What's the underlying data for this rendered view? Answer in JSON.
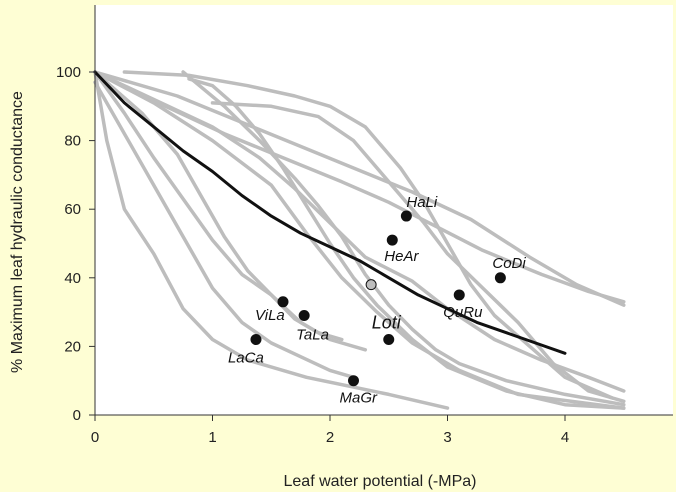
{
  "colors": {
    "background": "#fefed4",
    "plot_background": "#ffffff",
    "species_curve": "#bdbdbd",
    "mean_curve": "#111111",
    "point": "#111111",
    "highlight_point": "#bdbdbd",
    "axis": "#333333"
  },
  "chart_data": {
    "type": "line",
    "title": "",
    "xlabel": "Leaf water potential (-MPa)",
    "ylabel": "% Maximum leaf hydraulic conductance",
    "xlim": [
      0,
      4.5
    ],
    "ylim": [
      0,
      120
    ],
    "xticks": [
      0,
      1,
      2,
      3,
      4
    ],
    "yticks": [
      0,
      20,
      40,
      60,
      80,
      100
    ],
    "grid": false,
    "legend": "none",
    "species_curves": [
      [
        [
          0,
          100
        ],
        [
          0.1,
          80
        ],
        [
          0.25,
          60
        ],
        [
          0.5,
          47
        ],
        [
          0.75,
          31
        ],
        [
          1,
          22
        ],
        [
          1.3,
          16
        ],
        [
          1.8,
          11
        ],
        [
          2.5,
          6
        ],
        [
          3,
          2
        ]
      ],
      [
        [
          0,
          97
        ],
        [
          0.25,
          82
        ],
        [
          0.5,
          67
        ],
        [
          0.75,
          52
        ],
        [
          1,
          37
        ],
        [
          1.25,
          27
        ],
        [
          1.5,
          21
        ],
        [
          1.75,
          17
        ],
        [
          2,
          13
        ],
        [
          2.2,
          11
        ]
      ],
      [
        [
          0,
          100
        ],
        [
          0.25,
          88
        ],
        [
          0.5,
          75
        ],
        [
          0.75,
          63
        ],
        [
          1,
          51
        ],
        [
          1.25,
          41
        ],
        [
          1.5,
          35
        ],
        [
          1.75,
          27
        ],
        [
          2,
          22
        ],
        [
          2.3,
          19
        ]
      ],
      [
        [
          0,
          100
        ],
        [
          0.4,
          88
        ],
        [
          0.7,
          76
        ],
        [
          0.9,
          64
        ],
        [
          1.1,
          52
        ],
        [
          1.3,
          42
        ],
        [
          1.5,
          35
        ],
        [
          1.7,
          28
        ],
        [
          1.9,
          24
        ],
        [
          2.1,
          22
        ]
      ],
      [
        [
          0,
          100
        ],
        [
          0.5,
          91
        ],
        [
          1,
          80
        ],
        [
          1.5,
          67
        ],
        [
          1.8,
          53
        ],
        [
          2.1,
          40
        ],
        [
          2.4,
          30
        ],
        [
          2.7,
          21
        ],
        [
          3.1,
          13
        ],
        [
          3.6,
          6
        ],
        [
          4.5,
          2
        ]
      ],
      [
        [
          0,
          100
        ],
        [
          0.5,
          92
        ],
        [
          1,
          84
        ],
        [
          1.4,
          75
        ],
        [
          1.7,
          66
        ],
        [
          2,
          56
        ],
        [
          2.3,
          46
        ],
        [
          2.7,
          39
        ],
        [
          3,
          31
        ],
        [
          3.4,
          22
        ],
        [
          3.8,
          16
        ],
        [
          4.2,
          11
        ],
        [
          4.5,
          7
        ]
      ],
      [
        [
          0.25,
          100
        ],
        [
          0.8,
          99
        ],
        [
          1.3,
          96
        ],
        [
          1.7,
          93
        ],
        [
          2,
          90
        ],
        [
          2.3,
          84
        ],
        [
          2.6,
          72
        ],
        [
          2.8,
          62
        ],
        [
          3,
          50
        ],
        [
          3.2,
          38
        ],
        [
          3.4,
          29
        ],
        [
          3.7,
          20
        ],
        [
          4,
          11
        ],
        [
          4.4,
          5
        ]
      ],
      [
        [
          1,
          91
        ],
        [
          1.5,
          90
        ],
        [
          1.9,
          87
        ],
        [
          2.2,
          80
        ],
        [
          2.5,
          68
        ],
        [
          2.8,
          56
        ],
        [
          3,
          47
        ],
        [
          3.3,
          37
        ],
        [
          3.6,
          27
        ],
        [
          3.9,
          15
        ],
        [
          4.2,
          7
        ],
        [
          4.5,
          4
        ]
      ],
      [
        [
          0,
          100
        ],
        [
          0.7,
          93
        ],
        [
          1.2,
          86
        ],
        [
          1.7,
          79
        ],
        [
          2.2,
          72
        ],
        [
          2.7,
          65
        ],
        [
          3.2,
          57
        ],
        [
          3.7,
          46
        ],
        [
          4.1,
          38
        ],
        [
          4.5,
          32
        ]
      ],
      [
        [
          0,
          100
        ],
        [
          0.6,
          90
        ],
        [
          1.1,
          82
        ],
        [
          1.6,
          75
        ],
        [
          2.1,
          68
        ],
        [
          2.5,
          62
        ],
        [
          2.9,
          55
        ],
        [
          3.3,
          48
        ],
        [
          3.8,
          41
        ],
        [
          4.2,
          36
        ],
        [
          4.5,
          33
        ]
      ],
      [
        [
          0.75,
          100
        ],
        [
          1.1,
          90
        ],
        [
          1.4,
          80
        ],
        [
          1.7,
          69
        ],
        [
          1.9,
          61
        ],
        [
          2.1,
          52
        ],
        [
          2.3,
          41
        ],
        [
          2.5,
          32
        ],
        [
          2.7,
          25
        ],
        [
          2.9,
          19
        ],
        [
          3.1,
          15
        ],
        [
          3.5,
          10
        ],
        [
          4,
          6
        ],
        [
          4.5,
          3
        ]
      ],
      [
        [
          0.8,
          98
        ],
        [
          1,
          96
        ],
        [
          1.2,
          90
        ],
        [
          1.4,
          82
        ],
        [
          1.6,
          72
        ],
        [
          1.8,
          61
        ],
        [
          2,
          50
        ],
        [
          2.2,
          40
        ],
        [
          2.4,
          32
        ],
        [
          2.7,
          22
        ],
        [
          3,
          14
        ],
        [
          3.5,
          7
        ],
        [
          4,
          3
        ],
        [
          4.5,
          2
        ]
      ]
    ],
    "mean_curve": [
      [
        0,
        100
      ],
      [
        0.25,
        91
      ],
      [
        0.5,
        84
      ],
      [
        0.75,
        77
      ],
      [
        1,
        71
      ],
      [
        1.25,
        64
      ],
      [
        1.5,
        58
      ],
      [
        1.75,
        53
      ],
      [
        2,
        49
      ],
      [
        2.25,
        45
      ],
      [
        2.5,
        40
      ],
      [
        2.75,
        35
      ],
      [
        3,
        31
      ],
      [
        3.25,
        27
      ],
      [
        3.5,
        24
      ],
      [
        3.75,
        21
      ],
      [
        4,
        18
      ]
    ],
    "points": [
      {
        "label": "HaLi",
        "x": 2.65,
        "y": 58,
        "highlight": false,
        "big": false
      },
      {
        "label": "HeAr",
        "x": 2.53,
        "y": 51,
        "highlight": false,
        "big": false
      },
      {
        "label": "CoDi",
        "x": 3.45,
        "y": 40,
        "highlight": false,
        "big": false
      },
      {
        "label": "QuRu",
        "x": 3.1,
        "y": 35,
        "highlight": false,
        "big": false
      },
      {
        "label": "",
        "x": 2.35,
        "y": 38,
        "highlight": true,
        "big": false
      },
      {
        "label": "ViLa",
        "x": 1.6,
        "y": 33,
        "highlight": false,
        "big": false
      },
      {
        "label": "TaLa",
        "x": 1.78,
        "y": 29,
        "highlight": false,
        "big": false
      },
      {
        "label": "Loti",
        "x": 2.5,
        "y": 22,
        "highlight": false,
        "big": true
      },
      {
        "label": "LaCa",
        "x": 1.37,
        "y": 22,
        "highlight": false,
        "big": false
      },
      {
        "label": "MaGr",
        "x": 2.2,
        "y": 10,
        "highlight": false,
        "big": false
      }
    ]
  }
}
